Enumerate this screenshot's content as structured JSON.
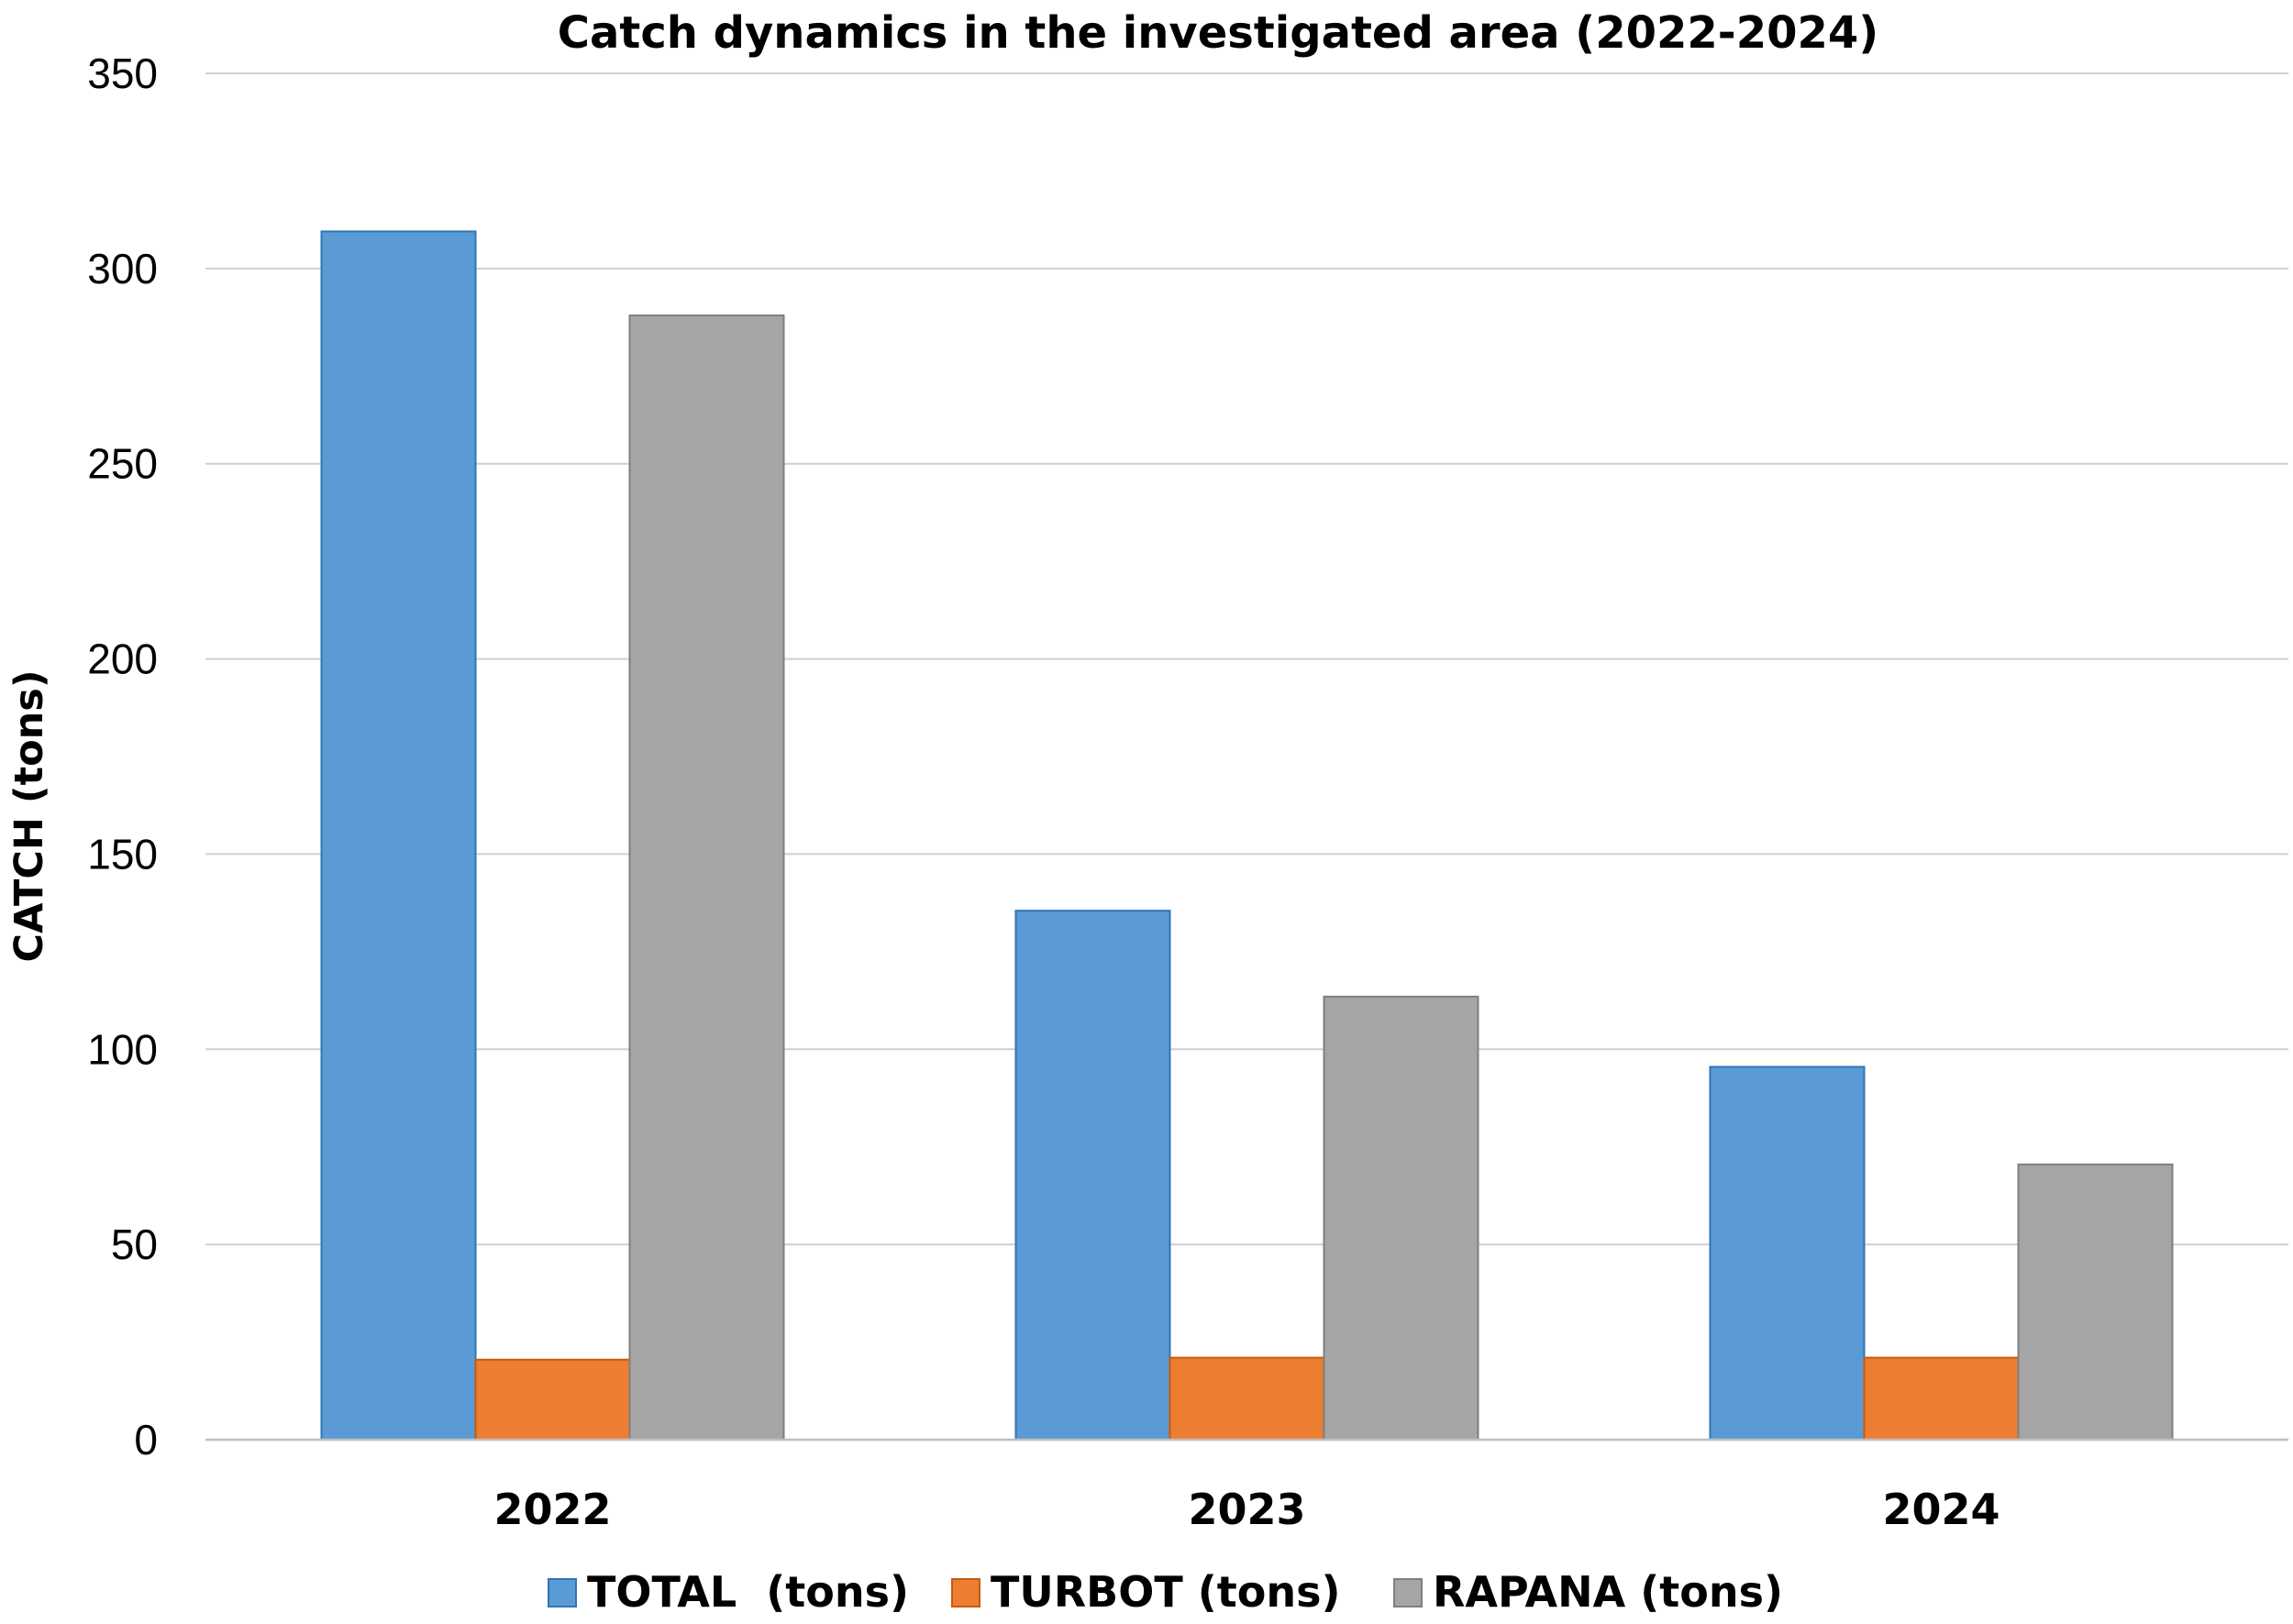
{
  "chart_data": {
    "type": "bar",
    "title": "Catch dynamics in the investigated area (2022-2024)",
    "xlabel": "",
    "ylabel": "CATCH (tons)",
    "categories": [
      "2022",
      "2023",
      "2024"
    ],
    "series": [
      {
        "name": "TOTAL  (tons)",
        "values": [
          309.5,
          135.5,
          95.5
        ],
        "color": "#5b9bd5",
        "stroke": "#2e75b6"
      },
      {
        "name": "TURBOT (tons)",
        "values": [
          20.5,
          21.0,
          21.0
        ],
        "color": "#ed7d31",
        "stroke": "#c55a11"
      },
      {
        "name": "RAPANA (tons)",
        "values": [
          288.0,
          113.5,
          70.5
        ],
        "color": "#a5a5a5",
        "stroke": "#7f7f7f"
      }
    ],
    "ylim": [
      0,
      350
    ],
    "yticks": [
      0,
      50,
      100,
      150,
      200,
      250,
      300,
      350
    ],
    "grid": true,
    "legend_position": "bottom"
  }
}
